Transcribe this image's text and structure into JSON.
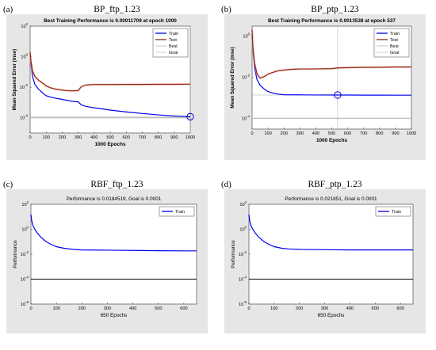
{
  "chart_data": [
    {
      "panel_label": "(a)",
      "figure_title": "BP_ftp_1.23",
      "title": "Best Training Performance is 0.00011709 at epoch 1000",
      "type": "line",
      "xlabel": "1000 Epochs",
      "ylabel": "Mean Squared Error  (mse)",
      "yscale": "log",
      "xlim": [
        0,
        1000
      ],
      "ylim": [
        1e-05,
        100
      ],
      "x_ticks": [
        "0",
        "100",
        "200",
        "300",
        "400",
        "500",
        "600",
        "700",
        "800",
        "900",
        "1000"
      ],
      "y_ticks": [
        {
          "base": "10",
          "exp": "2",
          "value": 100
        },
        {
          "base": "10",
          "exp": "0",
          "value": 1
        },
        {
          "base": "10",
          "exp": "-2",
          "value": 0.01
        },
        {
          "base": "10",
          "exp": "-4",
          "value": 0.0001
        }
      ],
      "legend": [
        "Train",
        "Test",
        "Best",
        "Goal"
      ],
      "legend_position": "top-right",
      "colors": {
        "Train": "#0000ee",
        "Test": "#8b2a10",
        "Best": "#aaaaaa",
        "Goal": "#bbbbbb"
      },
      "series": [
        {
          "name": "Train",
          "x": [
            0,
            5,
            15,
            30,
            50,
            80,
            100,
            130,
            160,
            200,
            260,
            300,
            320,
            350,
            400,
            500,
            600,
            700,
            800,
            900,
            1000
          ],
          "y": [
            1,
            0.3,
            0.05,
            0.015,
            0.008,
            0.004,
            0.0028,
            0.0022,
            0.0019,
            0.0016,
            0.0012,
            0.0011,
            0.0007,
            0.00055,
            0.00045,
            0.00032,
            0.00024,
            0.00019,
            0.000155,
            0.00013,
            0.000117
          ]
        },
        {
          "name": "Test",
          "x": [
            0,
            5,
            15,
            30,
            50,
            80,
            100,
            130,
            160,
            200,
            230,
            260,
            300,
            320,
            350,
            400,
            500,
            600,
            700,
            800,
            900,
            1000
          ],
          "y": [
            2,
            0.5,
            0.12,
            0.05,
            0.03,
            0.018,
            0.012,
            0.009,
            0.0075,
            0.0065,
            0.006,
            0.0058,
            0.006,
            0.011,
            0.014,
            0.015,
            0.015,
            0.0152,
            0.0152,
            0.0155,
            0.0155,
            0.0158
          ]
        }
      ],
      "goal": 0.0001,
      "best_marker": {
        "x": 1000,
        "y": 0.000117
      }
    },
    {
      "panel_label": "(b)",
      "figure_title": "BP_ptp_1.23",
      "title": "Best Training Performance is 0.0013538 at epoch 537",
      "type": "line",
      "xlabel": "1000 Epochs",
      "ylabel": "Mean Squared Error  (mse)",
      "yscale": "log",
      "xlim": [
        0,
        1000
      ],
      "ylim": [
        3e-05,
        3
      ],
      "x_ticks": [
        "0",
        "100",
        "200",
        "300",
        "400",
        "500",
        "600",
        "700",
        "800",
        "900",
        "1000"
      ],
      "y_ticks": [
        {
          "base": "10",
          "exp": "0",
          "value": 1
        },
        {
          "base": "10",
          "exp": "-2",
          "value": 0.01
        },
        {
          "base": "10",
          "exp": "-4",
          "value": 0.0001
        }
      ],
      "legend": [
        "Train",
        "Test",
        "Best",
        "Goal"
      ],
      "legend_position": "top-right",
      "colors": {
        "Train": "#0000ee",
        "Test": "#8b2a10",
        "Best": "#aaaaaa",
        "Goal": "#bbbbbb"
      },
      "series": [
        {
          "name": "Train",
          "x": [
            0,
            5,
            15,
            30,
            50,
            80,
            100,
            130,
            160,
            200,
            300,
            400,
            537,
            600,
            700,
            800,
            900,
            1000
          ],
          "y": [
            1,
            0.2,
            0.03,
            0.008,
            0.004,
            0.0025,
            0.002,
            0.0017,
            0.0015,
            0.0014,
            0.00138,
            0.00136,
            0.0013538,
            0.00135,
            0.00134,
            0.00134,
            0.00133,
            0.00133
          ]
        },
        {
          "name": "Test",
          "x": [
            0,
            5,
            15,
            30,
            50,
            80,
            100,
            130,
            160,
            200,
            250,
            300,
            350,
            400,
            500,
            537,
            600,
            700,
            800,
            900,
            1000
          ],
          "y": [
            2,
            0.3,
            0.05,
            0.015,
            0.009,
            0.011,
            0.014,
            0.017,
            0.02,
            0.022,
            0.024,
            0.025,
            0.025,
            0.025,
            0.026,
            0.028,
            0.029,
            0.03,
            0.03,
            0.031,
            0.031
          ]
        }
      ],
      "goal": 0.0001,
      "best_marker": {
        "x": 537,
        "y": 0.0013538
      }
    },
    {
      "panel_label": "(c)",
      "figure_title": "RBF_ftp_1.23",
      "title": "Performance is 0.0184519, Goal is 0.0001",
      "type": "line",
      "xlabel": "650 Epochs",
      "ylabel": "Performance",
      "yscale": "log",
      "xlim": [
        0,
        650
      ],
      "ylim": [
        1e-06,
        100
      ],
      "x_ticks": [
        "0",
        "100",
        "200",
        "300",
        "400",
        "500",
        "600"
      ],
      "y_ticks": [
        {
          "base": "10",
          "exp": "2",
          "value": 100
        },
        {
          "base": "10",
          "exp": "0",
          "value": 1
        },
        {
          "base": "10",
          "exp": "-2",
          "value": 0.01
        },
        {
          "base": "10",
          "exp": "-4",
          "value": 0.0001
        },
        {
          "base": "10",
          "exp": "-6",
          "value": 1e-06
        }
      ],
      "legend": [
        "Train"
      ],
      "legend_position": "top-right",
      "colors": {
        "Train": "#0000ee",
        "Goal": "#000000"
      },
      "series": [
        {
          "name": "Train",
          "x": [
            0,
            3,
            8,
            15,
            25,
            40,
            60,
            80,
            100,
            130,
            160,
            200,
            300,
            400,
            500,
            600,
            650
          ],
          "y": [
            15,
            5,
            2,
            1,
            0.5,
            0.22,
            0.1,
            0.06,
            0.04,
            0.03,
            0.025,
            0.022,
            0.021,
            0.02,
            0.019,
            0.0185,
            0.0184519
          ]
        }
      ],
      "goal": 0.0001
    },
    {
      "panel_label": "(d)",
      "figure_title": "RBF_ptp_1.23",
      "title": "Performance is 0.021851, Goal is 0.0001",
      "type": "line",
      "xlabel": "650 Epochs",
      "ylabel": "Performance",
      "yscale": "log",
      "xlim": [
        0,
        650
      ],
      "ylim": [
        1e-06,
        100
      ],
      "x_ticks": [
        "0",
        "100",
        "200",
        "300",
        "400",
        "500",
        "600"
      ],
      "y_ticks": [
        {
          "base": "10",
          "exp": "2",
          "value": 100
        },
        {
          "base": "10",
          "exp": "0",
          "value": 1
        },
        {
          "base": "10",
          "exp": "-2",
          "value": 0.01
        },
        {
          "base": "10",
          "exp": "-4",
          "value": 0.0001
        },
        {
          "base": "10",
          "exp": "-6",
          "value": 1e-06
        }
      ],
      "legend": [
        "Train"
      ],
      "legend_position": "top-right",
      "colors": {
        "Train": "#0000ee",
        "Goal": "#000000"
      },
      "series": [
        {
          "name": "Train",
          "x": [
            0,
            3,
            8,
            15,
            25,
            40,
            60,
            80,
            100,
            130,
            160,
            200,
            300,
            400,
            500,
            600,
            650
          ],
          "y": [
            15,
            5,
            2,
            1,
            0.5,
            0.22,
            0.1,
            0.06,
            0.04,
            0.03,
            0.026,
            0.024,
            0.023,
            0.022,
            0.022,
            0.0219,
            0.021851
          ]
        }
      ],
      "goal": 0.0001
    }
  ]
}
